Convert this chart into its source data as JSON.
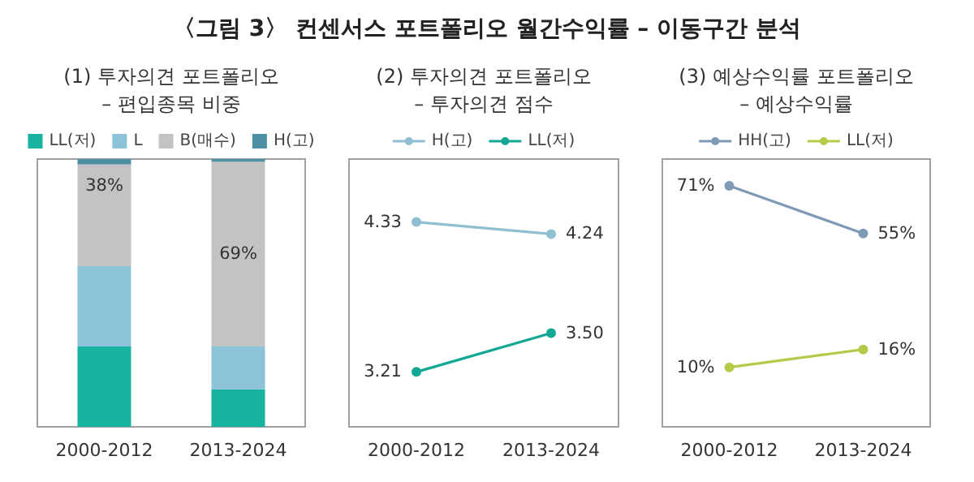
{
  "chart_data": [
    {
      "type": "bar",
      "title": "〈그림 3〉 컨센서스 포트폴리오 월간수익률 – 이동구간 분석",
      "subtitle": "(1) 투자의견 포트폴리오",
      "annotations": [
        "– 편입종목 비중"
      ],
      "stacked": true,
      "categories": [
        "2000-2012",
        "2013-2024"
      ],
      "ylim": [
        0,
        100
      ],
      "tick_labels": "x",
      "legend": "top",
      "series": [
        {
          "name": "LL(저)",
          "color": "#17b3a0",
          "values": [
            30,
            14
          ]
        },
        {
          "name": "L",
          "color": "#8dc3d8",
          "values": [
            30,
            16
          ]
        },
        {
          "name": "B(매수)",
          "color": "#c3c3c5",
          "values": [
            38,
            69
          ],
          "value_labels": [
            "38%",
            "69%"
          ]
        },
        {
          "name": "H(고)",
          "color": "#4d8fa3",
          "values": [
            2,
            1
          ]
        }
      ]
    },
    {
      "type": "line",
      "title": "(2) 투자의견 포트폴리오",
      "subtitle": "– 투자의견 점수",
      "categories": [
        "2000-2012",
        "2013-2024"
      ],
      "ylim": [
        2.8,
        4.8
      ],
      "tick_labels": "x",
      "legend": "top",
      "marker": "circle",
      "series": [
        {
          "name": "H(고)",
          "color": "#8fbfd0",
          "values": [
            4.33,
            4.24
          ],
          "value_labels": [
            "4.33",
            "4.24"
          ]
        },
        {
          "name": "LL(저)",
          "color": "#13a894",
          "values": [
            3.21,
            3.5
          ],
          "value_labels": [
            "3.21",
            "3.50"
          ]
        }
      ]
    },
    {
      "type": "line",
      "title": "(3) 예상수익률 포트폴리오",
      "subtitle": "– 예상수익률",
      "categories": [
        "2000-2012",
        "2013-2024"
      ],
      "ylim": [
        -10,
        80
      ],
      "tick_labels": "x",
      "legend": "top",
      "marker": "circle",
      "series": [
        {
          "name": "HH(고)",
          "color": "#7f9ab6",
          "values": [
            71,
            55
          ],
          "value_labels": [
            "71%",
            "55%"
          ]
        },
        {
          "name": "LL(저)",
          "color": "#b3cb48",
          "values": [
            10,
            16
          ],
          "value_labels": [
            "10%",
            "16%"
          ]
        }
      ]
    }
  ]
}
